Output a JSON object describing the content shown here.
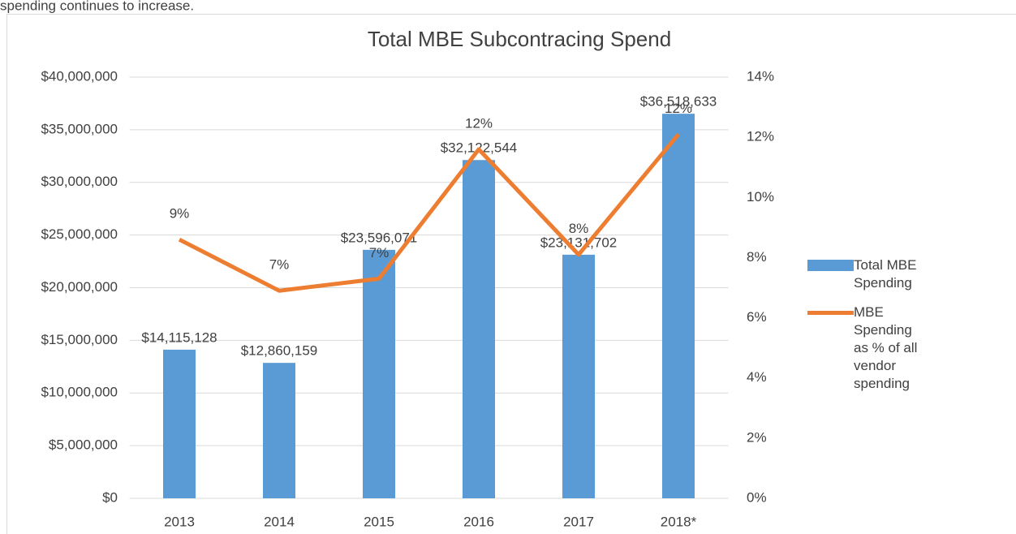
{
  "caption": "spending continues to increase.",
  "chart_data": {
    "type": "bar-line",
    "title": "Total MBE Subcontracing Spend",
    "categories": [
      "2013",
      "2014",
      "2015",
      "2016",
      "2017",
      "2018*"
    ],
    "series": [
      {
        "name": "Total MBE Spending",
        "type": "bar",
        "color": "#5b9bd5",
        "values": [
          14115128,
          12860159,
          23596071,
          32122544,
          23131702,
          36518633
        ],
        "value_labels": [
          "$14,115,128",
          "$12,860,159",
          "$23,596,071",
          "$32,122,544",
          "$23,131,702",
          "$36,518,633"
        ]
      },
      {
        "name": "MBE Spending as % of all vendor spending",
        "type": "line",
        "color": "#ed7d31",
        "axis": "y2",
        "values": [
          8.6,
          6.9,
          7.3,
          11.6,
          8.1,
          12.1
        ],
        "value_labels": [
          "9%",
          "7%",
          "7%",
          "12%",
          "8%",
          "12%"
        ]
      }
    ],
    "ylim": [
      0,
      40000000
    ],
    "yticks": [
      {
        "value": 0,
        "label": "$0"
      },
      {
        "value": 5000000,
        "label": "$5,000,000"
      },
      {
        "value": 10000000,
        "label": "$10,000,000"
      },
      {
        "value": 15000000,
        "label": "$15,000,000"
      },
      {
        "value": 20000000,
        "label": "$20,000,000"
      },
      {
        "value": 25000000,
        "label": "$25,000,000"
      },
      {
        "value": 30000000,
        "label": "$30,000,000"
      },
      {
        "value": 35000000,
        "label": "$35,000,000"
      },
      {
        "value": 40000000,
        "label": "$40,000,000"
      }
    ],
    "y2lim": [
      0,
      14
    ],
    "y2ticks": [
      {
        "value": 0,
        "label": "0%"
      },
      {
        "value": 2,
        "label": "2%"
      },
      {
        "value": 4,
        "label": "4%"
      },
      {
        "value": 6,
        "label": "6%"
      },
      {
        "value": 8,
        "label": "8%"
      },
      {
        "value": 10,
        "label": "10%"
      },
      {
        "value": 12,
        "label": "12%"
      },
      {
        "value": 14,
        "label": "14%"
      }
    ],
    "grid": true,
    "legend": "right"
  }
}
